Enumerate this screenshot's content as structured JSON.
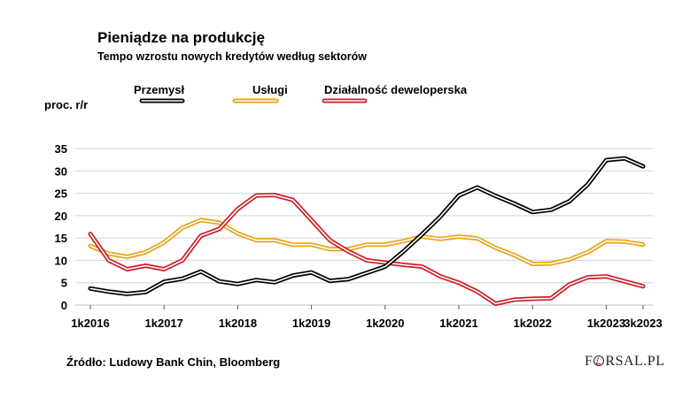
{
  "chart_data": {
    "type": "line",
    "title": "Pieniądze na produkcję",
    "subtitle": "Tempo wzrostu nowych kredytów według sektorów",
    "ylabel": "proc. r/r",
    "xlabel": "",
    "ylim": [
      0,
      35
    ],
    "y_ticks": [
      0,
      5,
      10,
      15,
      20,
      25,
      30,
      35
    ],
    "x_tick_labels": [
      "1k2016",
      "1k2017",
      "1k2018",
      "1k2019",
      "1k2020",
      "1k2021",
      "1k2022",
      "1k2023",
      "3k2023"
    ],
    "x_tick_index": [
      0,
      4,
      8,
      12,
      16,
      20,
      24,
      28,
      30
    ],
    "grid": true,
    "legend_position": "top",
    "series": [
      {
        "name": "Przemysł",
        "color": "#000000",
        "values": [
          3.7,
          3.0,
          2.5,
          2.9,
          5.2,
          5.9,
          7.5,
          5.3,
          4.7,
          5.6,
          5.1,
          6.6,
          7.3,
          5.4,
          5.8,
          7.2,
          8.6,
          12.0,
          15.8,
          19.8,
          24.5,
          26.3,
          24.4,
          22.7,
          20.8,
          21.3,
          23.2,
          27.0,
          32.4,
          32.8,
          31.0
        ]
      },
      {
        "name": "Usługi",
        "color": "#e8a317",
        "values": [
          13.2,
          11.5,
          10.8,
          11.8,
          14.0,
          17.3,
          19.0,
          18.4,
          16.0,
          14.5,
          14.5,
          13.5,
          13.5,
          12.5,
          12.5,
          13.5,
          13.5,
          14.3,
          15.3,
          14.8,
          15.3,
          14.9,
          12.8,
          11.2,
          9.2,
          9.3,
          10.2,
          11.8,
          14.3,
          14.2,
          13.5
        ]
      },
      {
        "name": "Działalność deweloperska",
        "color": "#c8202a",
        "values": [
          15.9,
          10.0,
          8.0,
          8.8,
          8.0,
          10.0,
          15.5,
          17.0,
          21.5,
          24.5,
          24.6,
          23.5,
          19.0,
          14.5,
          12.0,
          10.0,
          9.5,
          9.0,
          8.6,
          6.4,
          5.0,
          3.0,
          0.3,
          1.2,
          1.4,
          1.5,
          4.6,
          6.2,
          6.4,
          5.3,
          4.2
        ]
      }
    ]
  },
  "footer": {
    "source": "Źródło: Ludowy Bank Chin, Bloomberg",
    "logo_prefix": "F",
    "logo_suffix": "RSAL.PL"
  }
}
